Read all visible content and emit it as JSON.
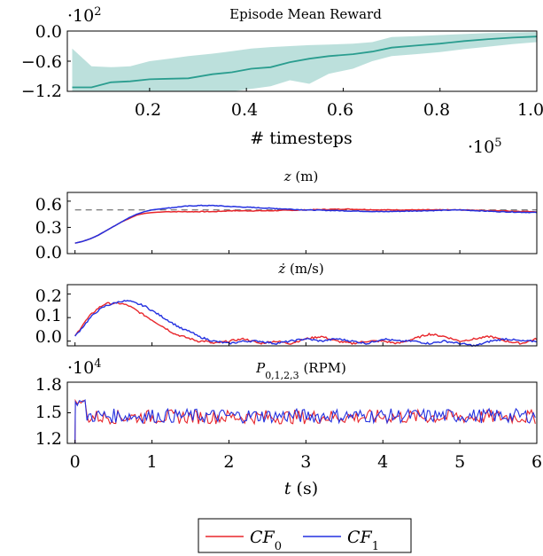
{
  "chart_data": [
    {
      "type": "area",
      "title": "Episode Mean Reward",
      "xlabel": "# timesteps",
      "x_multiplier": "·10^5",
      "y_multiplier": "·10^2",
      "xlim": [
        0.03,
        1.0
      ],
      "ylim": [
        -1.2,
        0.0
      ],
      "x_ticks": [
        "0.2",
        "0.4",
        "0.6",
        "0.8",
        "1.0"
      ],
      "y_ticks": [
        "0.0",
        "−0.6",
        "−1.2"
      ],
      "color": "#2a9d8f",
      "band_color": "#9fd3cd",
      "x": [
        0.04,
        0.08,
        0.12,
        0.16,
        0.2,
        0.24,
        0.28,
        0.33,
        0.37,
        0.41,
        0.45,
        0.49,
        0.53,
        0.57,
        0.62,
        0.66,
        0.7,
        0.75,
        0.8,
        0.85,
        0.9,
        0.95,
        1.0
      ],
      "mean": [
        -1.12,
        -1.12,
        -1.02,
        -1.0,
        -0.96,
        -0.95,
        -0.94,
        -0.86,
        -0.82,
        -0.75,
        -0.72,
        -0.62,
        -0.55,
        -0.5,
        -0.46,
        -0.41,
        -0.33,
        -0.29,
        -0.25,
        -0.2,
        -0.16,
        -0.13,
        -0.11
      ],
      "upper": [
        -0.35,
        -0.7,
        -0.72,
        -0.7,
        -0.6,
        -0.55,
        -0.5,
        -0.45,
        -0.4,
        -0.35,
        -0.32,
        -0.3,
        -0.28,
        -0.27,
        -0.25,
        -0.22,
        -0.12,
        -0.1,
        -0.08,
        -0.06,
        -0.04,
        -0.03,
        -0.02
      ],
      "lower": [
        -1.2,
        -1.2,
        -1.2,
        -1.2,
        -1.2,
        -1.2,
        -1.2,
        -1.2,
        -1.2,
        -1.15,
        -1.1,
        -0.98,
        -1.05,
        -0.85,
        -0.75,
        -0.6,
        -0.5,
        -0.46,
        -0.42,
        -0.36,
        -0.31,
        -0.26,
        -0.22
      ]
    },
    {
      "type": "line",
      "title": "z (m)",
      "xlim": [
        -0.1,
        6.0
      ],
      "ylim": [
        0.0,
        0.7
      ],
      "y_ticks": [
        "0.6",
        "0.3",
        "0.0"
      ],
      "target": 0.5,
      "series": [
        {
          "name": "CF0",
          "color": "#e8262b",
          "t": [
            0,
            0.1,
            0.2,
            0.3,
            0.4,
            0.5,
            0.6,
            0.7,
            0.8,
            0.9,
            1.0,
            1.2,
            1.4,
            1.6,
            1.8,
            2.0,
            2.5,
            3.0,
            3.5,
            4.0,
            4.5,
            5.0,
            5.5,
            6.0
          ],
          "values": [
            0.12,
            0.14,
            0.17,
            0.21,
            0.26,
            0.31,
            0.36,
            0.4,
            0.44,
            0.46,
            0.47,
            0.48,
            0.48,
            0.48,
            0.48,
            0.49,
            0.49,
            0.5,
            0.51,
            0.5,
            0.5,
            0.5,
            0.49,
            0.48
          ]
        },
        {
          "name": "CF1",
          "color": "#2431e0",
          "t": [
            0,
            0.1,
            0.2,
            0.3,
            0.4,
            0.5,
            0.6,
            0.7,
            0.8,
            0.9,
            1.0,
            1.2,
            1.4,
            1.6,
            1.8,
            2.0,
            2.5,
            3.0,
            3.5,
            4.0,
            4.5,
            5.0,
            5.5,
            6.0
          ],
          "values": [
            0.12,
            0.14,
            0.17,
            0.21,
            0.26,
            0.31,
            0.36,
            0.41,
            0.45,
            0.48,
            0.5,
            0.52,
            0.54,
            0.55,
            0.55,
            0.54,
            0.52,
            0.5,
            0.49,
            0.48,
            0.49,
            0.5,
            0.48,
            0.47
          ]
        }
      ]
    },
    {
      "type": "line",
      "title": "ż (m/s)",
      "xlim": [
        -0.1,
        6.0
      ],
      "ylim": [
        -0.02,
        0.24
      ],
      "y_ticks": [
        "0.2",
        "0.1",
        "0.0"
      ],
      "series": [
        {
          "name": "CF0",
          "color": "#e8262b",
          "t": [
            0,
            0.1,
            0.2,
            0.3,
            0.4,
            0.5,
            0.6,
            0.7,
            0.8,
            0.9,
            1.0,
            1.1,
            1.2,
            1.3,
            1.4,
            1.5,
            1.6,
            1.7,
            1.8,
            2.0,
            2.2,
            2.4,
            2.6,
            2.8,
            3.0,
            3.2,
            3.4,
            3.6,
            3.8,
            4.0,
            4.2,
            4.4,
            4.6,
            4.8,
            5.0,
            5.2,
            5.4,
            5.6,
            5.8,
            6.0
          ],
          "values": [
            0.02,
            0.07,
            0.11,
            0.14,
            0.16,
            0.16,
            0.16,
            0.15,
            0.13,
            0.11,
            0.09,
            0.07,
            0.05,
            0.03,
            0.02,
            0.01,
            0.0,
            0.0,
            -0.01,
            0.0,
            0.01,
            -0.01,
            0.0,
            -0.01,
            0.01,
            0.02,
            0.0,
            -0.01,
            0.0,
            0.0,
            -0.01,
            0.01,
            0.03,
            0.02,
            0.0,
            0.01,
            0.02,
            0.0,
            -0.01,
            0.01
          ]
        },
        {
          "name": "CF1",
          "color": "#2431e0",
          "t": [
            0,
            0.1,
            0.2,
            0.3,
            0.4,
            0.5,
            0.6,
            0.7,
            0.8,
            0.9,
            1.0,
            1.1,
            1.2,
            1.3,
            1.4,
            1.5,
            1.6,
            1.7,
            1.8,
            2.0,
            2.2,
            2.4,
            2.6,
            2.8,
            3.0,
            3.2,
            3.4,
            3.6,
            3.8,
            4.0,
            4.2,
            4.4,
            4.6,
            4.8,
            5.0,
            5.2,
            5.4,
            5.6,
            5.8,
            6.0
          ],
          "values": [
            0.02,
            0.06,
            0.1,
            0.13,
            0.15,
            0.16,
            0.17,
            0.17,
            0.16,
            0.15,
            0.13,
            0.11,
            0.09,
            0.07,
            0.05,
            0.04,
            0.02,
            0.01,
            0.0,
            -0.01,
            0.0,
            0.0,
            -0.01,
            0.0,
            0.01,
            0.0,
            0.01,
            0.0,
            -0.01,
            0.01,
            0.0,
            0.0,
            -0.01,
            0.0,
            -0.01,
            -0.02,
            0.0,
            0.01,
            0.0,
            0.0
          ]
        }
      ]
    },
    {
      "type": "line",
      "title": "P0,1,2,3 (RPM)",
      "y_multiplier": "·10^4",
      "xlabel": "t (s)",
      "xlim": [
        -0.1,
        6.0
      ],
      "ylim": [
        1.2,
        1.8
      ],
      "y_ticks": [
        "1.8",
        "1.5",
        "1.2"
      ],
      "x_ticks": [
        "0",
        "1",
        "2",
        "3",
        "4",
        "5",
        "6"
      ],
      "series": [
        {
          "name": "CF0",
          "color": "#e8262b",
          "mean": 1.46,
          "amplitude": 0.07
        },
        {
          "name": "CF1",
          "color": "#2431e0",
          "mean": 1.47,
          "amplitude": 0.07
        }
      ]
    }
  ],
  "legend": [
    {
      "label": "CF",
      "sub": "0",
      "color": "#e8262b"
    },
    {
      "label": "CF",
      "sub": "1",
      "color": "#2431e0"
    }
  ]
}
